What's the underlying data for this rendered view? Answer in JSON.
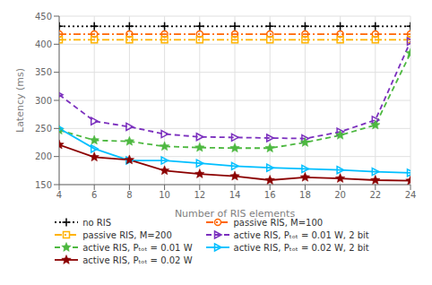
{
  "chart_data": {
    "type": "line",
    "xlabel": "Number of RIS elements",
    "ylabel": "Latency (ms)",
    "x": [
      4,
      6,
      8,
      10,
      12,
      14,
      16,
      18,
      20,
      22,
      24
    ],
    "xlim": [
      4,
      24
    ],
    "ylim": [
      150,
      450
    ],
    "xticks": [
      4,
      6,
      8,
      10,
      12,
      14,
      16,
      18,
      20,
      22,
      24
    ],
    "yticks": [
      150,
      200,
      250,
      300,
      350,
      400,
      450
    ],
    "grid": true,
    "legend": "bottom",
    "series": [
      {
        "name": "no RIS",
        "color": "#000000",
        "marker": "plus",
        "line_style": "dotted",
        "values": [
          432,
          432,
          432,
          432,
          432,
          432,
          432,
          432,
          432,
          432,
          432
        ]
      },
      {
        "name": "passive RIS, M=100",
        "color": "#FF6600",
        "marker": "circle",
        "line_style": "dashdot",
        "values": [
          418,
          418,
          418,
          418,
          418,
          418,
          418,
          418,
          418,
          418,
          418
        ]
      },
      {
        "name": "passive RIS, M=200",
        "color": "#FFB300",
        "marker": "square",
        "line_style": "dashdot",
        "values": [
          408,
          408,
          408,
          408,
          408,
          408,
          408,
          408,
          408,
          408,
          408
        ]
      },
      {
        "name": "active RIS, Pₜₒₜ = 0.01 W, 2 bit",
        "color": "#7B2FBE",
        "marker": "triangle-right",
        "line_style": "dashed",
        "values": [
          310,
          263,
          253,
          240,
          235,
          234,
          233,
          232,
          244,
          265,
          405
        ]
      },
      {
        "name": "active RIS, Pₜₒₜ = 0.01 W",
        "color": "#4DB840",
        "marker": "star",
        "line_style": "dashed",
        "values": [
          247,
          229,
          227,
          218,
          216,
          215,
          215,
          225,
          238,
          256,
          384
        ]
      },
      {
        "name": "active RIS, Pₜₒₜ = 0.02 W, 2 bit",
        "color": "#00BFFF",
        "marker": "triangle-right",
        "line_style": "solid",
        "values": [
          250,
          214,
          193,
          193,
          188,
          183,
          180,
          178,
          176,
          173,
          171
        ]
      },
      {
        "name": "active RIS, Pₜₒₜ = 0.02 W",
        "color": "#8B0000",
        "marker": "star",
        "line_style": "solid",
        "values": [
          221,
          199,
          194,
          175,
          169,
          165,
          158,
          163,
          161,
          158,
          157
        ]
      }
    ]
  }
}
